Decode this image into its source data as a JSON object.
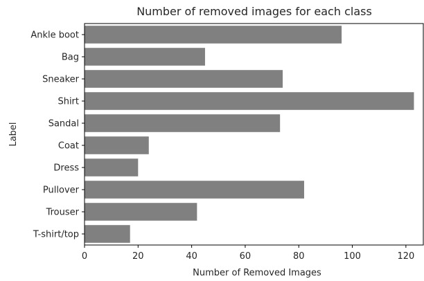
{
  "chart_data": {
    "type": "bar",
    "orientation": "horizontal",
    "title": "Number of removed images for each class",
    "xlabel": "Number of Removed Images",
    "ylabel": "Label",
    "categories": [
      "Ankle boot",
      "Bag",
      "Sneaker",
      "Shirt",
      "Sandal",
      "Coat",
      "Dress",
      "Pullover",
      "Trouser",
      "T-shirt/top"
    ],
    "values": [
      96,
      45,
      74,
      123,
      73,
      24,
      20,
      82,
      42,
      17
    ],
    "xlim": [
      0,
      126.5
    ],
    "xticks": [
      0,
      20,
      40,
      60,
      80,
      100,
      120
    ],
    "bar_color": "#808080",
    "grid": false,
    "legend": "none"
  }
}
